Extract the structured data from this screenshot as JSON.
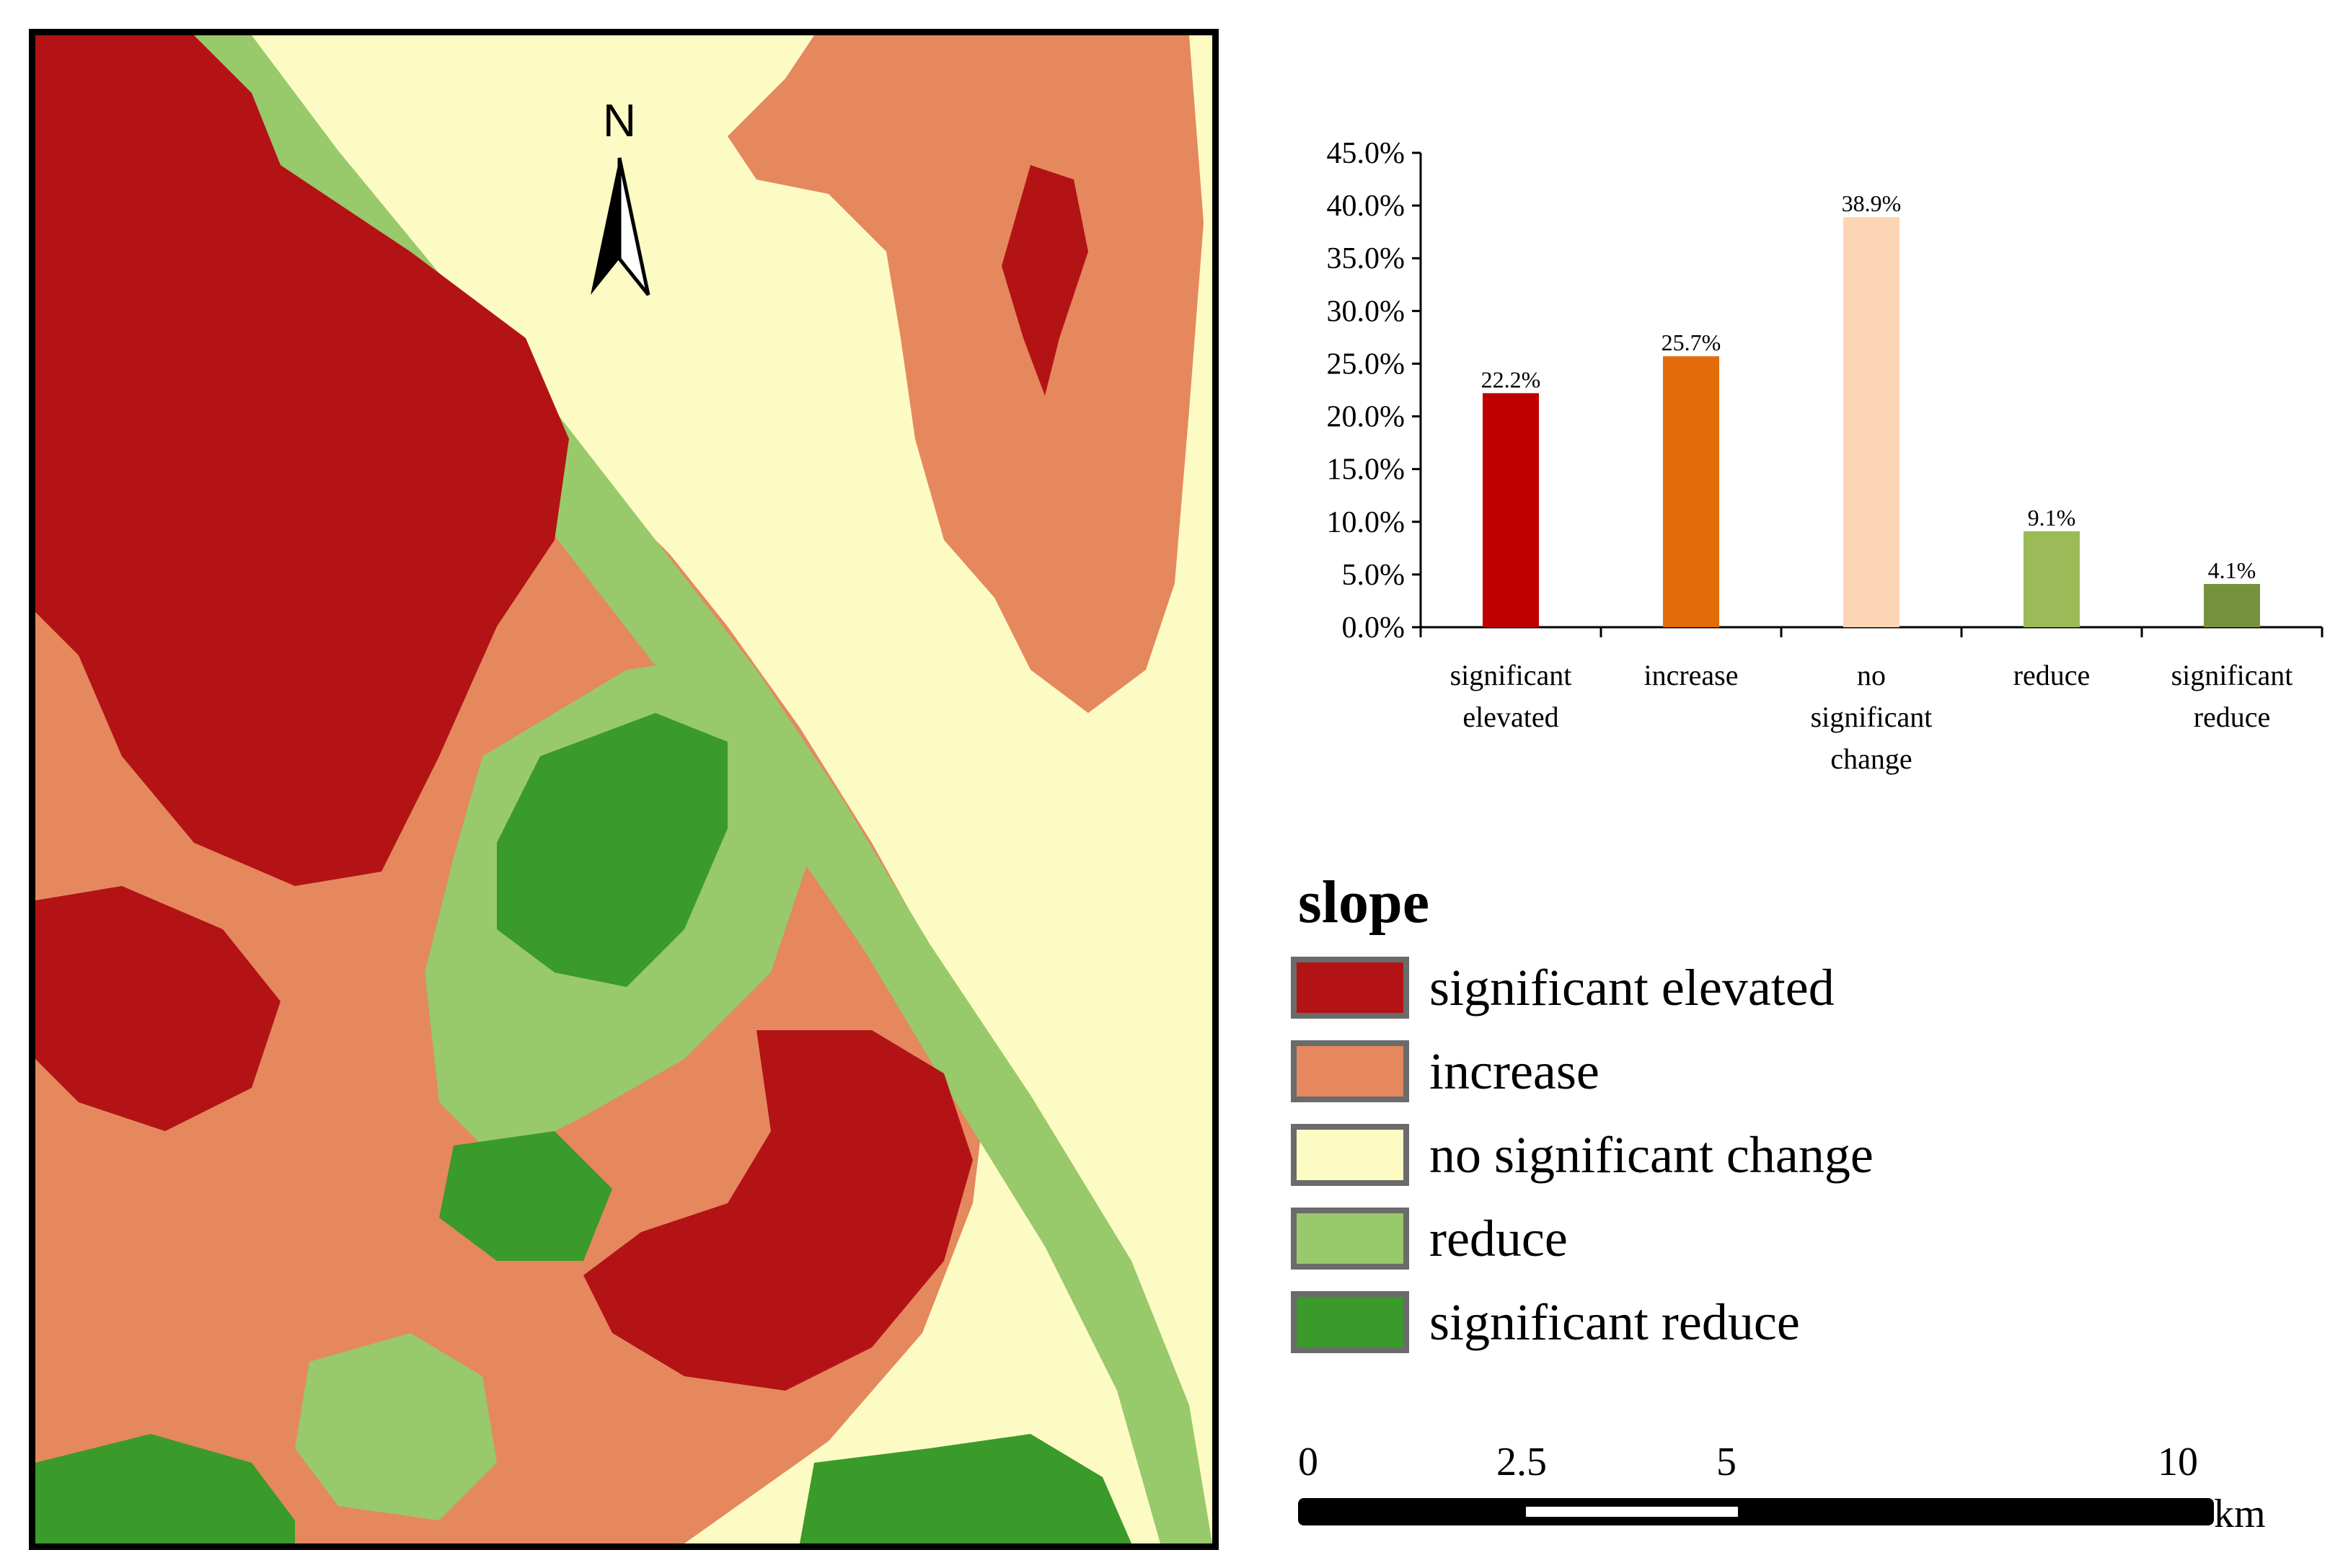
{
  "colors": {
    "significant_elevated": "#b31315",
    "increase": "#e5885e",
    "no_significant_change": "#fdfbc4",
    "reduce": "#98c96a",
    "significant_reduce": "#3a9a2a"
  },
  "map": {
    "north_label": "N"
  },
  "chart_data": {
    "type": "bar",
    "categories": [
      [
        "significant",
        "elevated"
      ],
      [
        "increase"
      ],
      [
        "no",
        "significant",
        "change"
      ],
      [
        "reduce"
      ],
      [
        "significant",
        "reduce"
      ]
    ],
    "values": [
      22.2,
      25.7,
      38.9,
      9.1,
      4.1
    ],
    "value_labels": [
      "22.2%",
      "25.7%",
      "38.9%",
      "9.1%",
      "4.1%"
    ],
    "bar_colors": [
      "#c00000",
      "#e36c0a",
      "#fcd5b5",
      "#9bbb59",
      "#76923c"
    ],
    "y_ticks": [
      "0.0%",
      "5.0%",
      "10.0%",
      "15.0%",
      "20.0%",
      "25.0%",
      "30.0%",
      "35.0%",
      "40.0%",
      "45.0%"
    ],
    "ylim": [
      0,
      45
    ],
    "title": "",
    "xlabel": "",
    "ylabel": ""
  },
  "legend": {
    "title": "slope",
    "items": [
      {
        "label": "significant elevated",
        "color": "#b31315"
      },
      {
        "label": "increase",
        "color": "#e5885e"
      },
      {
        "label": "no significant change",
        "color": "#fdfbc4"
      },
      {
        "label": "reduce",
        "color": "#98c96a"
      },
      {
        "label": "significant reduce",
        "color": "#3a9a2a"
      }
    ]
  },
  "scalebar": {
    "ticks": [
      "0",
      "2.5",
      "5",
      "10"
    ],
    "unit": "km"
  }
}
